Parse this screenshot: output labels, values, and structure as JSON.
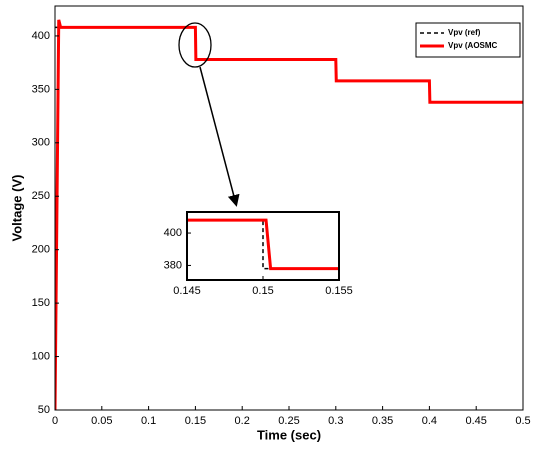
{
  "chart_data": [
    {
      "type": "line",
      "xlabel": "Time (sec)",
      "ylabel": "Voltage (V)",
      "xlim": [
        0,
        0.5
      ],
      "ylim": [
        50,
        428
      ],
      "xticks": [
        0,
        0.05,
        0.1,
        0.15,
        0.2,
        0.25,
        0.3,
        0.35,
        0.4,
        0.45,
        0.5
      ],
      "yticks": [
        50,
        100,
        150,
        200,
        250,
        300,
        350,
        400
      ],
      "legend": "top-right",
      "series": [
        {
          "name": "Vpv (ref)",
          "color": "#000000",
          "dash": true,
          "x": [
            0,
            0.15,
            0.15,
            0.3,
            0.3,
            0.4,
            0.4,
            0.5
          ],
          "values": [
            408,
            408,
            378,
            378,
            358,
            358,
            338,
            338
          ]
        },
        {
          "name": "Vpv (AOSMC",
          "color": "#ff0000",
          "dash": false,
          "x": [
            0,
            0.004,
            0.006,
            0.15,
            0.1505,
            0.3,
            0.3005,
            0.4,
            0.4005,
            0.5
          ],
          "values": [
            50,
            415,
            408,
            408,
            378,
            378,
            358,
            358,
            338,
            338
          ]
        }
      ]
    },
    {
      "type": "line",
      "xlim": [
        0.145,
        0.155
      ],
      "ylim": [
        371,
        413
      ],
      "xticks": [
        0.145,
        0.15,
        0.155
      ],
      "yticks": [
        380,
        400
      ],
      "series": [
        {
          "color": "#000000",
          "dash": true,
          "x": [
            0.145,
            0.15,
            0.15,
            0.155
          ],
          "values": [
            408,
            408,
            378,
            378
          ]
        },
        {
          "color": "#ff0000",
          "dash": false,
          "x": [
            0.145,
            0.1502,
            0.1505,
            0.155
          ],
          "values": [
            408,
            408,
            378,
            378
          ]
        }
      ]
    }
  ]
}
